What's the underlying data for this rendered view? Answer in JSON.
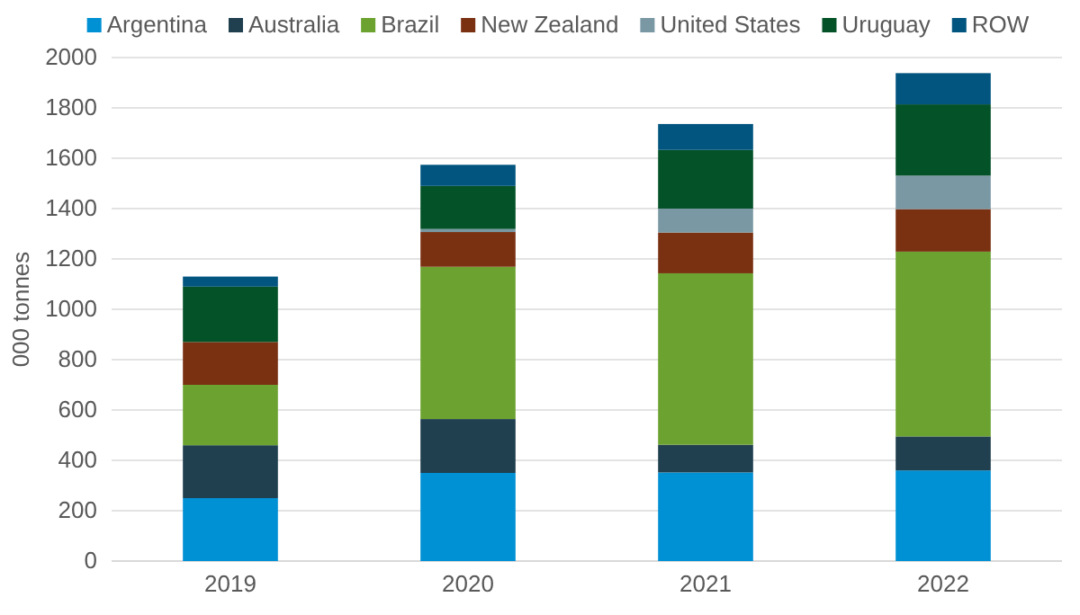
{
  "chart_data": {
    "type": "bar",
    "stacked": true,
    "ylabel": "000 tonnes",
    "categories": [
      "2019",
      "2020",
      "2021",
      "2022"
    ],
    "series": [
      {
        "name": "Argentina",
        "color": "#0090d4",
        "values": [
          250,
          350,
          352,
          360
        ]
      },
      {
        "name": "Australia",
        "color": "#203f4f",
        "values": [
          210,
          214,
          110,
          135
        ]
      },
      {
        "name": "Brazil",
        "color": "#6ca22f",
        "values": [
          240,
          605,
          681,
          734
        ]
      },
      {
        "name": "New Zealand",
        "color": "#7a3112",
        "values": [
          170,
          138,
          162,
          169
        ]
      },
      {
        "name": "United States",
        "color": "#7a98a4",
        "values": [
          0,
          12,
          95,
          133
        ]
      },
      {
        "name": "Uruguay",
        "color": "#045227",
        "values": [
          220,
          171,
          233,
          283
        ]
      },
      {
        "name": "ROW",
        "color": "#02557f",
        "values": [
          40,
          84,
          103,
          124
        ]
      }
    ],
    "ylim": [
      0,
      2000
    ],
    "yticks": [
      0,
      200,
      400,
      600,
      800,
      1000,
      1200,
      1400,
      1600,
      1800,
      2000
    ],
    "grid": "y",
    "legend": "top"
  }
}
